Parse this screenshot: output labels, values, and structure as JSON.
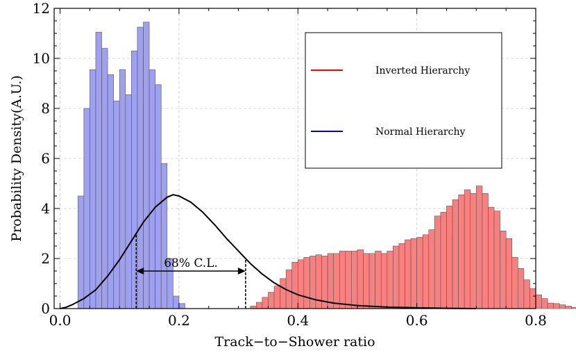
{
  "chart_data": {
    "type": "bar",
    "title": "",
    "xlabel": "Track−to−Shower ratio",
    "ylabel": "Probability Density(A.U.)",
    "xlim": [
      -0.01,
      0.8
    ],
    "ylim": [
      0,
      12
    ],
    "xticks": [
      0.0,
      0.2,
      0.4,
      0.6,
      0.8
    ],
    "xtick_labels": [
      "0.0",
      "0.2",
      "0.4",
      "0.6",
      "0.8"
    ],
    "yticks": [
      0,
      2,
      4,
      6,
      8,
      10,
      12
    ],
    "ytick_labels": [
      "0",
      "2",
      "4",
      "6",
      "8",
      "10",
      "12"
    ],
    "grid": true,
    "legend_position": "top-right",
    "bin_width": 0.01,
    "series": [
      {
        "name": "Inverted Hierarchy",
        "color": "#ff0000",
        "fill": "#fa8080",
        "bins_start": 0.32,
        "values": [
          0.1,
          0.25,
          0.45,
          0.65,
          0.9,
          1.2,
          1.55,
          1.85,
          1.95,
          2.05,
          2.1,
          2.15,
          2.1,
          2.2,
          2.2,
          2.3,
          2.3,
          2.3,
          2.35,
          2.2,
          2.2,
          2.3,
          2.2,
          2.3,
          2.5,
          2.6,
          2.75,
          2.8,
          2.85,
          2.95,
          3.15,
          3.7,
          3.85,
          4.1,
          4.35,
          4.55,
          4.75,
          4.6,
          4.9,
          4.6,
          4.05,
          3.9,
          3.1,
          2.8,
          2.05,
          1.6,
          1.15,
          0.8,
          0.55,
          0.4,
          0.22,
          0.2,
          0.15,
          0.1,
          0.05,
          0.03
        ]
      },
      {
        "name": "Normal Hierarchy",
        "color": "#0000cc",
        "fill": "#a0a0f0",
        "bins_start": 0.03,
        "values": [
          4.5,
          8.0,
          9.55,
          11.05,
          10.4,
          9.35,
          8.3,
          9.55,
          8.55,
          10.3,
          11.25,
          11.45,
          9.55,
          8.95,
          5.8,
          2.0,
          0.5,
          0.2
        ]
      }
    ],
    "curve": {
      "peak_x": 0.19,
      "peak_y": 4.55,
      "x": [
        0.0,
        0.01,
        0.02,
        0.04,
        0.06,
        0.08,
        0.1,
        0.12,
        0.14,
        0.16,
        0.18,
        0.19,
        0.2,
        0.22,
        0.24,
        0.26,
        0.28,
        0.3,
        0.32,
        0.34,
        0.36,
        0.38,
        0.4,
        0.43,
        0.46,
        0.5,
        0.55,
        0.6,
        0.65,
        0.7
      ],
      "y": [
        0.0,
        0.05,
        0.15,
        0.4,
        0.75,
        1.3,
        1.95,
        2.7,
        3.45,
        4.05,
        4.45,
        4.55,
        4.5,
        4.25,
        3.85,
        3.35,
        2.8,
        2.3,
        1.8,
        1.38,
        1.03,
        0.76,
        0.55,
        0.35,
        0.22,
        0.12,
        0.06,
        0.03,
        0.01,
        0.0
      ]
    },
    "confidence_interval": {
      "label": "68% C.L.",
      "low": 0.128,
      "high": 0.312,
      "y": 1.5
    }
  }
}
